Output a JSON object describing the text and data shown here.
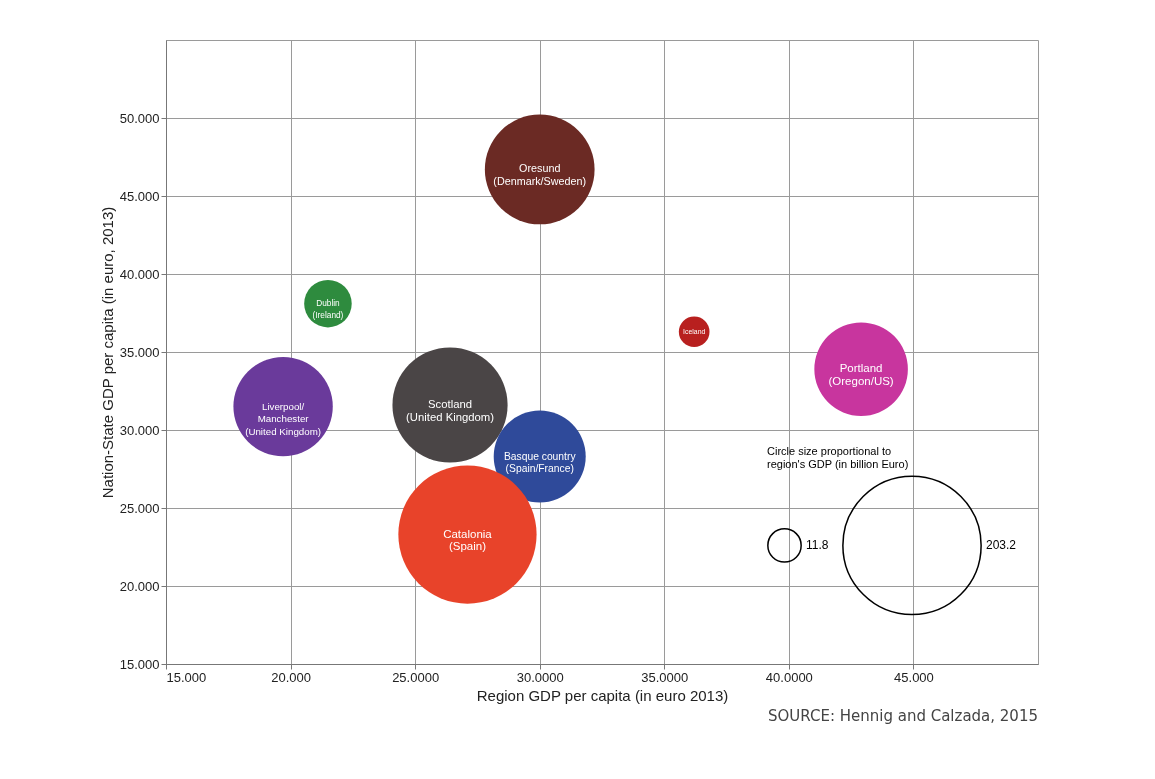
{
  "chart_data": {
    "type": "bubble",
    "xlabel": "Region GDP per capita (in euro 2013)",
    "ylabel": "Nation-State GDP per capita (in euro, 2013)",
    "xlim": [
      15,
      50
    ],
    "ylim": [
      15,
      55
    ],
    "xticks": [
      {
        "value": 15,
        "label": "15.000"
      },
      {
        "value": 20,
        "label": "20.000"
      },
      {
        "value": 25,
        "label": "25.0000"
      },
      {
        "value": 30,
        "label": "30.0000"
      },
      {
        "value": 35,
        "label": "35.0000"
      },
      {
        "value": 40,
        "label": "40.0000"
      },
      {
        "value": 45,
        "label": "45.000"
      }
    ],
    "yticks": [
      {
        "value": 15,
        "label": "15.000"
      },
      {
        "value": 20,
        "label": "20.000"
      },
      {
        "value": 25,
        "label": "25.000"
      },
      {
        "value": 30,
        "label": "30.000"
      },
      {
        "value": 35,
        "label": "35.000"
      },
      {
        "value": 40,
        "label": "40.000"
      },
      {
        "value": 45,
        "label": "45.000"
      },
      {
        "value": 50,
        "label": "50.000"
      }
    ],
    "grid": true,
    "legend": "bottom right",
    "legend_title": "Circle size proportional to region's GDP (in billion Euro)",
    "size_legend": [
      11.8,
      203.2
    ],
    "series": [
      {
        "name": "Oresund (Denmark/Sweden)",
        "color": "#6b2a24",
        "x": [
          30
        ],
        "values": [
          46.7
        ],
        "sizes": [
          128
        ]
      },
      {
        "name": "Dublin (Ireland)",
        "color": "#2e8b3e",
        "x": [
          21.5
        ],
        "values": [
          38.1
        ],
        "sizes": [
          24
        ]
      },
      {
        "name": "Iceland",
        "color": "#b8201f",
        "x": [
          36.2
        ],
        "values": [
          36.3
        ],
        "sizes": [
          10
        ]
      },
      {
        "name": "Portland (Oregon/US)",
        "color": "#c8359e",
        "x": [
          42.9
        ],
        "values": [
          33.9
        ],
        "sizes": [
          93
        ]
      },
      {
        "name": "Liverpool/Manchester (United Kingdom)",
        "color": "#6a3a9b",
        "x": [
          19.7
        ],
        "values": [
          31.5
        ],
        "sizes": [
          105
        ]
      },
      {
        "name": "Scotland (United Kingdom)",
        "color": "#4a4546",
        "x": [
          26.4
        ],
        "values": [
          31.6
        ],
        "sizes": [
          141
        ]
      },
      {
        "name": "Basque country (Spain/France)",
        "color": "#2f4a9a",
        "x": [
          30
        ],
        "values": [
          28.3
        ],
        "sizes": [
          90
        ]
      },
      {
        "name": "Catalonia (Spain)",
        "color": "#e8432a",
        "x": [
          27.1
        ],
        "values": [
          23.3
        ],
        "sizes": [
          203.2
        ]
      }
    ],
    "annotations": [
      "SOURCE: Hennig and Calzada, 2015"
    ]
  }
}
